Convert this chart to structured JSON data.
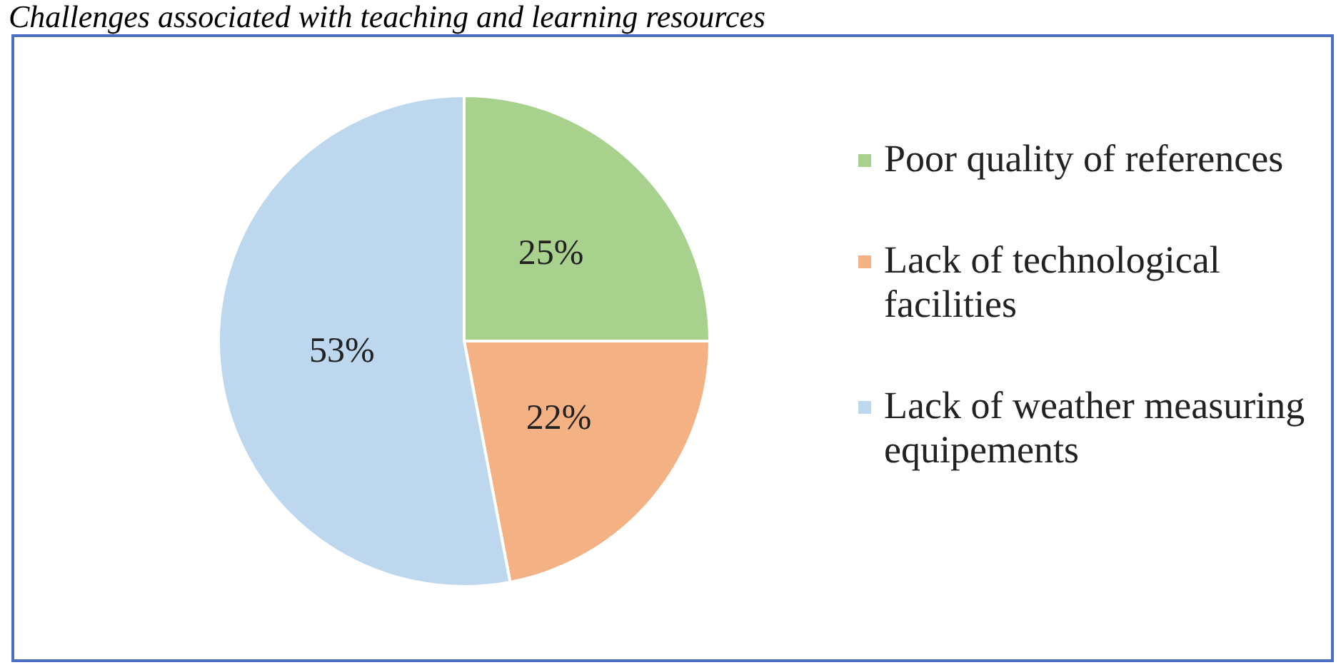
{
  "chart_data": {
    "type": "pie",
    "title": "Challenges associated with teaching and learning resources",
    "categories": [
      "Poor quality of references",
      "Lack of technological facilities",
      "Lack of weather measuring equipements"
    ],
    "values": [
      25,
      22,
      53
    ],
    "colors": [
      "#a9d18e",
      "#f4b183",
      "#bdd7ee"
    ],
    "value_labels": [
      "25%",
      "22%",
      "53%"
    ],
    "legend": "right"
  }
}
